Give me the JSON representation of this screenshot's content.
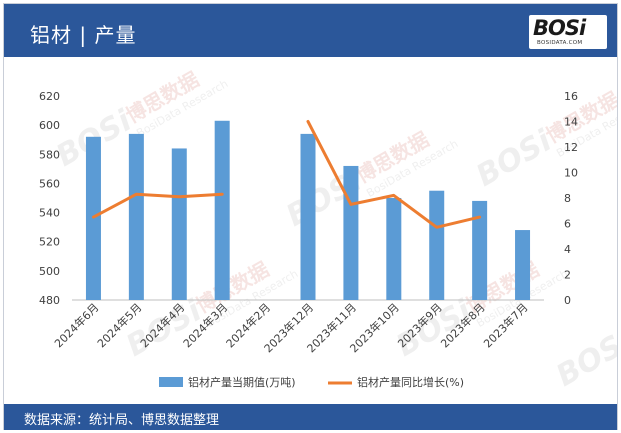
{
  "header": {
    "title": "铝材 | 产量",
    "logo_text": "BOSi",
    "logo_sub": "BOSIDATA.COM"
  },
  "footer": {
    "source": "数据来源：统计局、博思数据整理"
  },
  "watermark": {
    "brand": "BOSi",
    "cn": "博思数据",
    "en": "BosiData Research"
  },
  "colors": {
    "header_bg": "#2b579a",
    "bar": "#5b9bd5",
    "line": "#ed7d31"
  },
  "chart_data": {
    "type": "bar",
    "categories": [
      "2024年6月",
      "2024年5月",
      "2024年4月",
      "2024年3月",
      "2024年2月",
      "2023年12月",
      "2023年11月",
      "2023年10月",
      "2023年9月",
      "2023年8月",
      "2023年7月"
    ],
    "series": [
      {
        "name": "铝材产量当期值(万吨)",
        "type": "bar",
        "axis": "left",
        "values": [
          592,
          594,
          584,
          603,
          null,
          594,
          572,
          550,
          555,
          548,
          528
        ]
      },
      {
        "name": "铝材产量同比增长(%)",
        "type": "line",
        "axis": "right",
        "values": [
          6.5,
          8.3,
          8.1,
          8.3,
          null,
          14.0,
          7.5,
          8.2,
          5.7,
          6.5,
          null
        ]
      }
    ],
    "y_left": {
      "min": 480,
      "max": 620,
      "ticks": [
        480,
        500,
        520,
        540,
        560,
        580,
        600,
        620
      ]
    },
    "y_right": {
      "min": 0,
      "max": 16,
      "ticks": [
        0,
        2,
        4,
        6,
        8,
        10,
        12,
        14,
        16
      ]
    },
    "legend_position": "bottom",
    "grid": false
  }
}
